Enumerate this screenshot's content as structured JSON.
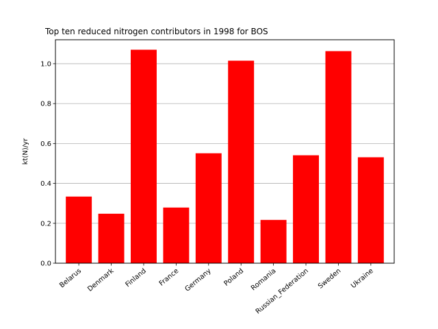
{
  "chart_data": {
    "type": "bar",
    "title": "Top ten reduced nitrogen contributors in 1998 for  BOS",
    "xlabel": "",
    "ylabel": "kt(N)/yr",
    "categories": [
      "Belarus",
      "Denmark",
      "Finland",
      "France",
      "Germany",
      "Poland",
      "Romania",
      "Russian_Federation",
      "Sweden",
      "Ukraine"
    ],
    "values": [
      0.334,
      0.248,
      1.07,
      0.279,
      0.551,
      1.015,
      0.217,
      0.541,
      1.063,
      0.531
    ],
    "ylim": [
      0,
      1.12
    ],
    "yticks": [
      0.0,
      0.2,
      0.4,
      0.6,
      0.8,
      1.0
    ],
    "ytick_labels": [
      "0.0",
      "0.2",
      "0.4",
      "0.6",
      "0.8",
      "1.0"
    ],
    "grid": "y",
    "bar_color": "#ff0000"
  }
}
